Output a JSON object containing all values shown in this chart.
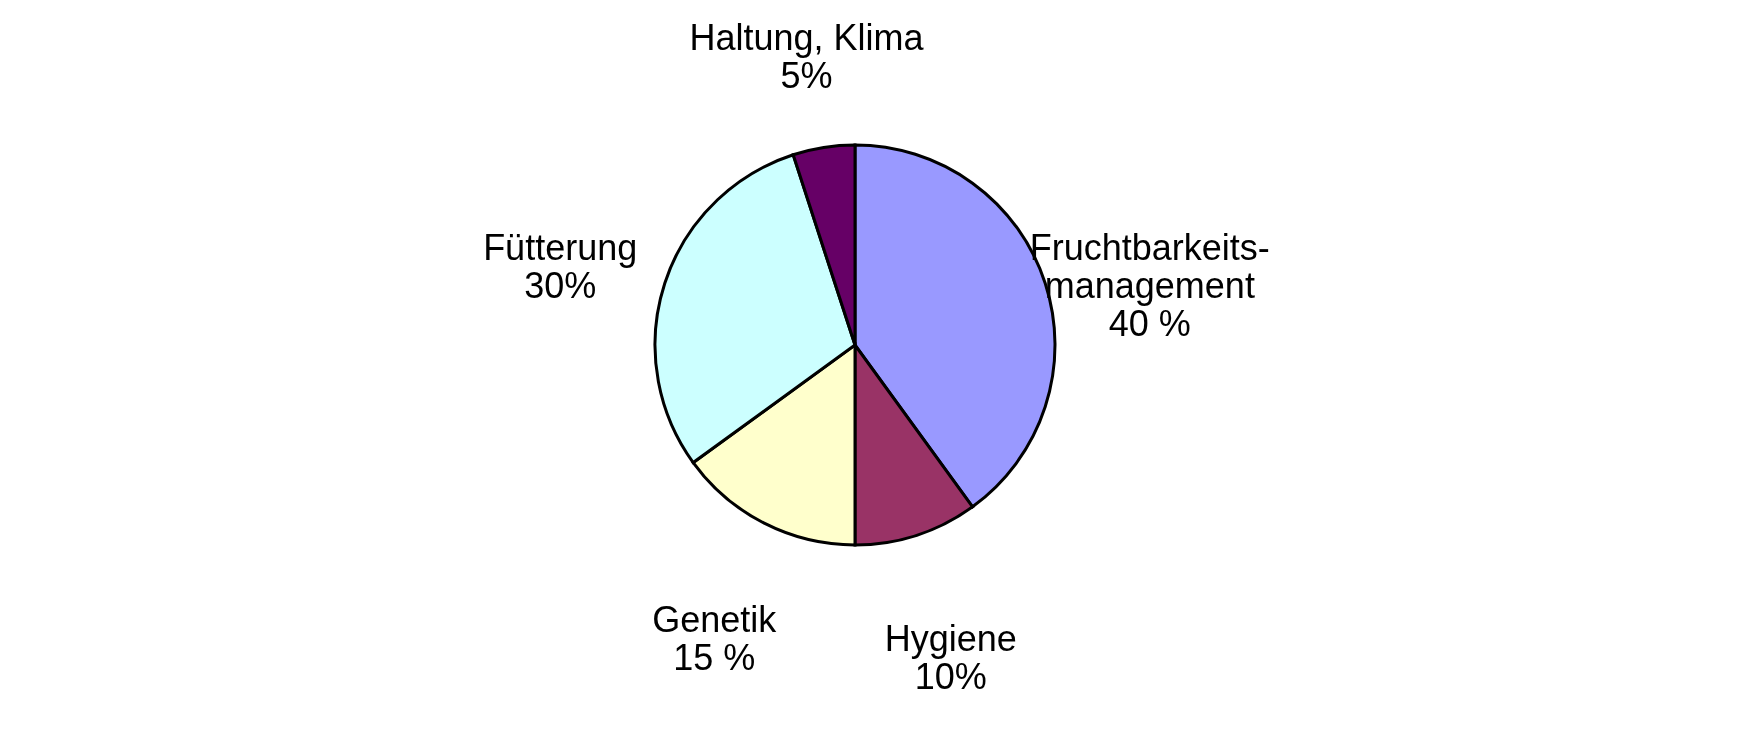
{
  "chart_data": {
    "type": "pie",
    "categories": [
      "Fruchtbarkeits-management",
      "Hygiene",
      "Genetik",
      "Fütterung",
      "Haltung, Klima"
    ],
    "values": [
      40,
      10,
      15,
      30,
      5
    ],
    "value_labels": [
      "40 %",
      "10%",
      "15 %",
      "30%",
      "5%"
    ],
    "colors": [
      "#9999ff",
      "#993366",
      "#ffffcc",
      "#ccffff",
      "#660066"
    ],
    "legend": false
  }
}
